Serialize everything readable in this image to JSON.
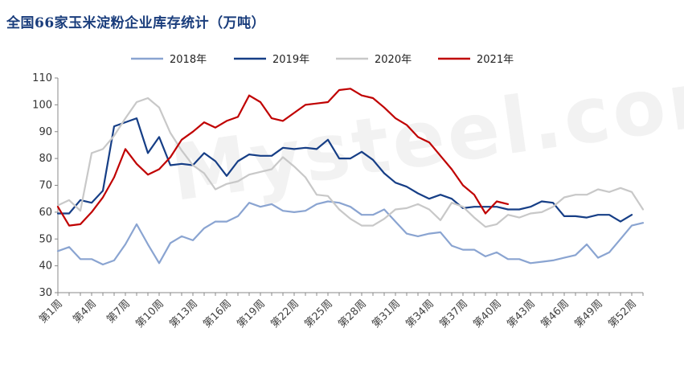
{
  "title": "全国66家玉米淀粉企业库存统计（万吨）",
  "watermark": "Mysteel.com",
  "chart_data": {
    "type": "line",
    "title": "全国66家玉米淀粉企业库存统计（万吨）",
    "xlabel": "",
    "ylabel": "",
    "ylim": [
      30,
      110
    ],
    "yticks": [
      30,
      40,
      50,
      60,
      70,
      80,
      90,
      100,
      110
    ],
    "grid": false,
    "legend": "top",
    "x_tick_labels": [
      "第1周",
      "第4周",
      "第7周",
      "第10周",
      "第13周",
      "第16周",
      "第19周",
      "第22周",
      "第25周",
      "第28周",
      "第31周",
      "第34周",
      "第37周",
      "第40周",
      "第43周",
      "第46周",
      "第49周",
      "第52周"
    ],
    "x_tick_weeks": [
      1,
      4,
      7,
      10,
      13,
      16,
      19,
      22,
      25,
      28,
      31,
      34,
      37,
      40,
      43,
      46,
      49,
      52
    ],
    "x_count": 53,
    "series": [
      {
        "name": "2018年",
        "color": "#8aa4d1",
        "start_week": 1,
        "values": [
          45.5,
          47,
          42.5,
          42.5,
          40.5,
          42,
          48,
          55.5,
          48,
          41,
          48.5,
          51,
          49.5,
          54,
          56.5,
          56.5,
          58.5,
          63.5,
          62,
          63,
          60.5,
          60,
          60.5,
          63,
          64,
          63.5,
          62,
          59,
          59,
          61,
          56.5,
          52,
          51,
          52,
          52.5,
          47.5,
          46,
          46,
          43.5,
          45,
          42.5,
          42.5,
          41,
          41.5,
          42,
          43,
          44,
          48,
          43,
          45,
          50,
          55,
          56
        ]
      },
      {
        "name": "2019年",
        "color": "#163e86",
        "start_week": 1,
        "values": [
          59.5,
          59.5,
          64.5,
          63.5,
          68,
          92,
          93.5,
          95,
          82,
          88,
          77.5,
          78,
          77.5,
          82,
          79,
          73.5,
          79,
          81.5,
          81,
          81,
          84,
          83.5,
          84,
          83.5,
          87,
          80,
          80,
          82.5,
          79.5,
          74.5,
          71,
          69.5,
          67,
          65,
          66.5,
          65,
          61.5,
          62,
          62,
          62,
          61,
          61,
          62,
          64,
          63.5,
          58.5,
          58.5,
          58,
          59,
          59,
          56.5,
          59
        ]
      },
      {
        "name": "2020年",
        "color": "#c8c8c8",
        "start_week": 1,
        "values": [
          62.5,
          64.5,
          60.5,
          82,
          83.5,
          88.5,
          95,
          101,
          102.5,
          99,
          89.5,
          83,
          77.5,
          74.5,
          68.5,
          70.5,
          71.5,
          74,
          75,
          76,
          80.5,
          77,
          73,
          66.5,
          66,
          61,
          57.5,
          55,
          55,
          57.5,
          61,
          61.5,
          63,
          61,
          57,
          63.5,
          62,
          58,
          54.5,
          55.5,
          59,
          58,
          59.5,
          60,
          62,
          65.5,
          66.5,
          66.5,
          68.5,
          67.5,
          69,
          67.5,
          61
        ]
      },
      {
        "name": "2021年",
        "color": "#c00000",
        "start_week": 1,
        "values": [
          62,
          55,
          55.5,
          60,
          65.5,
          73,
          83.5,
          78,
          74,
          76,
          80.5,
          87,
          90,
          93.5,
          91.5,
          94,
          95.5,
          103.5,
          101,
          95,
          94,
          97,
          100,
          100.5,
          101,
          105.5,
          106,
          103.5,
          102.5,
          99,
          95,
          92.5,
          88,
          86,
          81,
          76,
          70,
          66.5,
          59.5,
          64,
          63
        ]
      }
    ]
  }
}
